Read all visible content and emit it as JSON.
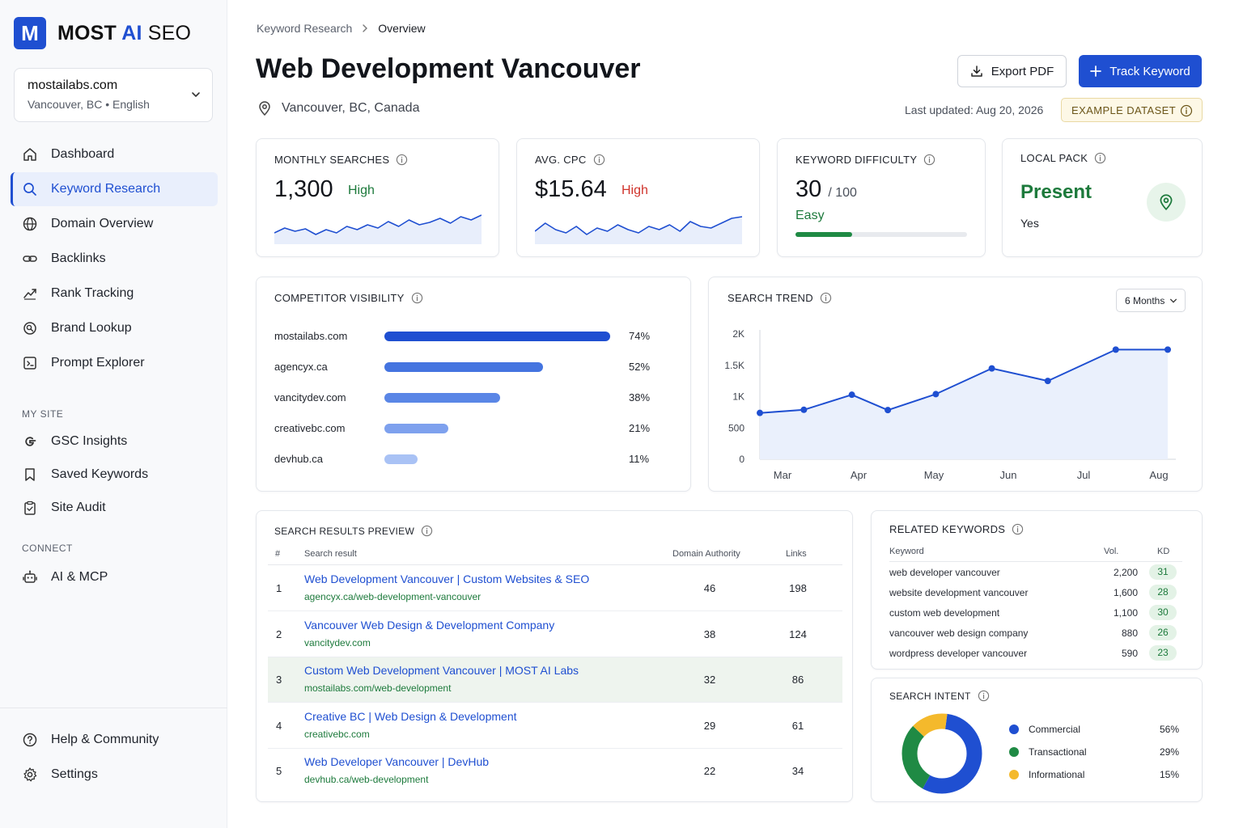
{
  "brand": {
    "mark": "M",
    "part1": "MOST ",
    "part2": "AI",
    "part3": " SEO"
  },
  "site": {
    "name": "mostailabs.com",
    "meta": "Vancouver, BC • English"
  },
  "nav": {
    "items": [
      {
        "label": "Dashboard"
      },
      {
        "label": "Keyword Research"
      },
      {
        "label": "Domain Overview"
      },
      {
        "label": "Backlinks"
      },
      {
        "label": "Rank Tracking"
      },
      {
        "label": "Brand Lookup"
      },
      {
        "label": "Prompt Explorer"
      }
    ],
    "my_site_heading": "MY SITE",
    "my_site": [
      {
        "label": "GSC Insights"
      },
      {
        "label": "Saved Keywords"
      },
      {
        "label": "Site Audit"
      }
    ],
    "connect_heading": "CONNECT",
    "connect": [
      {
        "label": "AI & MCP"
      }
    ],
    "footer": [
      {
        "label": "Help & Community"
      },
      {
        "label": "Settings"
      }
    ]
  },
  "breadcrumb": {
    "parent": "Keyword Research",
    "current": "Overview"
  },
  "page": {
    "title": "Web Development Vancouver",
    "location": "Vancouver, BC, Canada",
    "export_label": "Export PDF",
    "track_label": "Track Keyword",
    "updated": "Last updated: Aug 20, 2026",
    "example_badge": "EXAMPLE DATASET"
  },
  "metrics": {
    "monthly": {
      "label": "MONTHLY SEARCHES",
      "value": "1,300",
      "tag": "High",
      "spark": [
        20,
        26,
        22,
        25,
        18,
        24,
        20,
        28,
        24,
        30,
        26,
        34,
        28,
        36,
        30,
        33,
        38,
        32,
        40,
        36,
        42
      ]
    },
    "cpc": {
      "label": "AVG. CPC",
      "value": "$15.64",
      "tag": "High",
      "spark": [
        22,
        32,
        24,
        20,
        28,
        18,
        26,
        22,
        30,
        24,
        20,
        28,
        24,
        30,
        22,
        34,
        28,
        26,
        32,
        38,
        40
      ]
    },
    "kd": {
      "label": "KEYWORD DIFFICULTY",
      "value": "30",
      "max": "/ 100",
      "tag": "Easy",
      "fraction": 0.33
    },
    "local": {
      "label": "LOCAL PACK",
      "value": "Present",
      "sub": "Yes"
    }
  },
  "competitors": {
    "label": "COMPETITOR VISIBILITY",
    "rows": [
      {
        "domain": "mostailabs.com",
        "pct": "74%",
        "value": 74,
        "color": "#1f4fd1"
      },
      {
        "domain": "agencyx.ca",
        "pct": "52%",
        "value": 52,
        "color": "#4474e0"
      },
      {
        "domain": "vancitydev.com",
        "pct": "38%",
        "value": 38,
        "color": "#5a86e6"
      },
      {
        "domain": "creativebc.com",
        "pct": "21%",
        "value": 21,
        "color": "#7ea1ee"
      },
      {
        "domain": "devhub.ca",
        "pct": "11%",
        "value": 11,
        "color": "#a9c2f5"
      }
    ]
  },
  "trend": {
    "label": "SEARCH TREND",
    "range": "6 Months"
  },
  "chart_data": {
    "type": "line",
    "title": "SEARCH TREND",
    "categories": [
      "Mar",
      "Apr",
      "May",
      "Jun",
      "Jul",
      "Aug"
    ],
    "x": [
      0,
      0.55,
      1.15,
      1.6,
      2.2,
      2.9,
      3.6,
      4.45,
      5.1
    ],
    "y": [
      740,
      790,
      1030,
      785,
      1040,
      1450,
      1250,
      1750,
      1750
    ],
    "y_ticks": [
      "2K",
      "1.5K",
      "1K",
      "500",
      "0"
    ],
    "ylim": [
      0,
      2000
    ],
    "grid": false,
    "color": "#1f4fd1"
  },
  "results": {
    "label": "SEARCH RESULTS PREVIEW",
    "headers": {
      "num": "#",
      "result": "Search result",
      "da": "Domain Authority",
      "links": "Links"
    },
    "rows": [
      {
        "num": "1",
        "title": "Web Development Vancouver | Custom Websites & SEO",
        "url": "agencyx.ca/web-development-vancouver",
        "da": "46",
        "links": "198"
      },
      {
        "num": "2",
        "title": "Vancouver Web Design & Development Company",
        "url": "vancitydev.com",
        "da": "38",
        "links": "124"
      },
      {
        "num": "3",
        "title": "Custom Web Development Vancouver | MOST AI Labs",
        "url": "mostailabs.com/web-development",
        "da": "32",
        "links": "86"
      },
      {
        "num": "4",
        "title": "Creative BC | Web Design & Development",
        "url": "creativebc.com",
        "da": "29",
        "links": "61"
      },
      {
        "num": "5",
        "title": "Web Developer Vancouver | DevHub",
        "url": "devhub.ca/web-development",
        "da": "22",
        "links": "34"
      }
    ]
  },
  "related": {
    "label": "RELATED KEYWORDS",
    "headers": {
      "keyword": "Keyword",
      "vol": "Vol.",
      "kd": "KD"
    },
    "rows": [
      {
        "keyword": "web developer vancouver",
        "vol": "2,200",
        "kd": "31"
      },
      {
        "keyword": "website development vancouver",
        "vol": "1,600",
        "kd": "28"
      },
      {
        "keyword": "custom web development",
        "vol": "1,100",
        "kd": "30"
      },
      {
        "keyword": "vancouver web design company",
        "vol": "880",
        "kd": "26"
      },
      {
        "keyword": "wordpress developer vancouver",
        "vol": "590",
        "kd": "23"
      }
    ]
  },
  "intent": {
    "label": "SEARCH INTENT",
    "rows": [
      {
        "name": "Commercial",
        "pct": "56%",
        "value": 56,
        "color": "#1f4fd1"
      },
      {
        "name": "Transactional",
        "pct": "29%",
        "value": 29,
        "color": "#1f8a44"
      },
      {
        "name": "Informational",
        "pct": "15%",
        "value": 15,
        "color": "#f4b92c"
      }
    ]
  }
}
